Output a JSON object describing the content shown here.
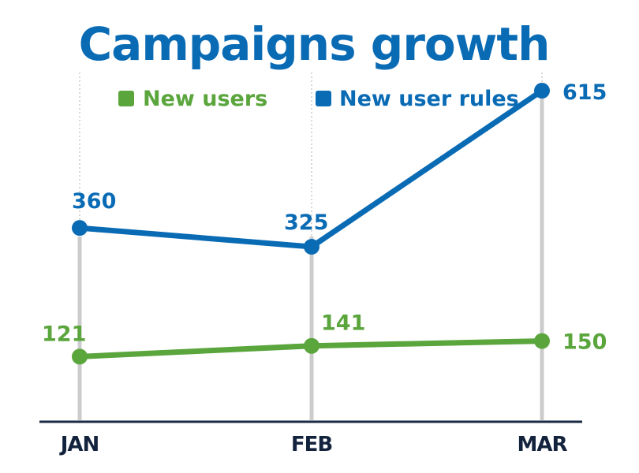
{
  "chart_data": {
    "type": "line",
    "title": "Campaigns growth",
    "categories": [
      "JAN",
      "FEB",
      "MAR"
    ],
    "series": [
      {
        "name": "New users",
        "values": [
          121,
          141,
          150
        ],
        "color": "#5aa53c"
      },
      {
        "name": "New user rules",
        "values": [
          360,
          325,
          615
        ],
        "color": "#0a6bb5"
      }
    ],
    "xlabel": "",
    "ylabel": "",
    "ylim": [
      0,
      615
    ],
    "grid": "vertical",
    "legend_position": "top",
    "colors": {
      "title": "#0a6bb5",
      "axis": "#1a2a44",
      "axis_text": "#14233d",
      "gridline": "#cccccc"
    }
  }
}
